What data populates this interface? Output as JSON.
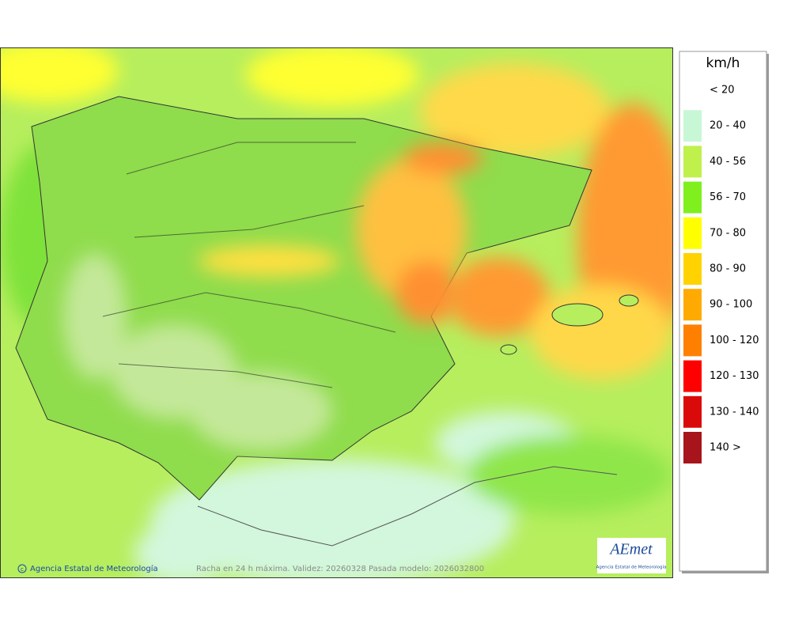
{
  "legend": {
    "title": "km/h",
    "items": [
      {
        "label": "< 20"
      },
      {
        "label": "20 - 40",
        "color": "#c8f7d6"
      },
      {
        "label": "40 - 56",
        "color": "#bff04c"
      },
      {
        "label": "56 - 70",
        "color": "#7fef1e"
      },
      {
        "label": "70 - 80",
        "color": "#ffff00"
      },
      {
        "label": "80 - 90",
        "color": "#ffd200"
      },
      {
        "label": "90 - 100",
        "color": "#ffaa00"
      },
      {
        "label": "100 - 120",
        "color": "#ff8000"
      },
      {
        "label": "120 - 130",
        "color": "#ff0000"
      },
      {
        "label": "130 - 140",
        "color": "#da0a0a"
      },
      {
        "label": "140 >",
        "color": "#a8141c"
      }
    ]
  },
  "footer": {
    "credit": "Agencia Estatal de Meteorología",
    "caption": "Racha en 24 h máxima. Validez: 20260328 Pasada modelo: 2026032800"
  },
  "logo": {
    "name": "AEmet",
    "subtitle": "Agencia Estatal de Meteorología"
  }
}
